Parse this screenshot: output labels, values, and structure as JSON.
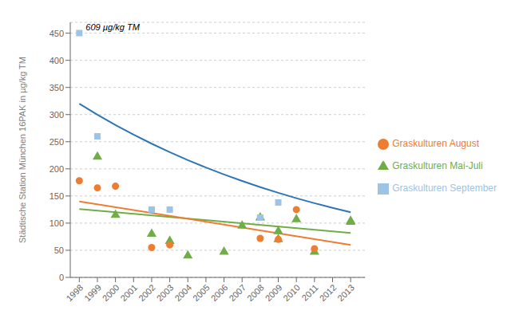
{
  "chart_data": {
    "type": "scatter",
    "ylabel": "Städtische Station München 16PAK in µg/kg TM",
    "xlim": [
      1997.5,
      2013.8
    ],
    "ylim": [
      0,
      470
    ],
    "xticks": [
      1998,
      1999,
      2000,
      2001,
      2002,
      2003,
      2004,
      2005,
      2006,
      2007,
      2008,
      2009,
      2010,
      2011,
      2012,
      2013
    ],
    "yticks": [
      0,
      50,
      100,
      150,
      200,
      250,
      300,
      350,
      400,
      450
    ],
    "grid": "y",
    "legend": "right",
    "series": [
      {
        "type": "line",
        "color": "#70AD47",
        "x": [
          1998,
          2013
        ],
        "values": [
          126,
          82
        ]
      },
      {
        "type": "line",
        "color": "#ED7D31",
        "x": [
          1998,
          2013
        ],
        "values": [
          140,
          60
        ]
      },
      {
        "type": "line",
        "color": "#2E75B6",
        "x": [
          1998,
          1999,
          2000,
          2001,
          2002,
          2003,
          2004,
          2005,
          2006,
          2007,
          2008,
          2009,
          2010,
          2011,
          2012,
          2013
        ],
        "values": [
          320,
          299.7,
          280.8,
          263.0,
          246.4,
          230.8,
          216.2,
          202.5,
          189.7,
          177.7,
          166.4,
          155.9,
          146.0,
          136.8,
          128.1,
          120
        ]
      },
      {
        "type": "scatter",
        "name": "Graskulturen Mai-Juli",
        "color": "#70AD47",
        "marker": "triangle",
        "x": [
          1999,
          2000,
          2002,
          2003,
          2004,
          2006,
          2007,
          2008,
          2009,
          2009,
          2010,
          2011,
          2013,
          2013
        ],
        "values": [
          222,
          115,
          80,
          67,
          40,
          47,
          95,
          110,
          70,
          85,
          107,
          47,
          102,
          104
        ]
      },
      {
        "type": "scatter",
        "name": "Graskulturen August",
        "color": "#ED7D31",
        "marker": "circle",
        "x": [
          1998,
          1999,
          2000,
          2002,
          2003,
          2008,
          2009,
          2010,
          2011
        ],
        "values": [
          178,
          165,
          168,
          55,
          60,
          72,
          70,
          125,
          53
        ]
      },
      {
        "type": "scatter",
        "name": "Graskulturen September",
        "color": "#9DC3E6",
        "marker": "square",
        "x": [
          1998,
          1999,
          2002,
          2003,
          2008,
          2009
        ],
        "values": [
          450,
          260,
          125,
          125,
          110,
          138
        ]
      }
    ],
    "annotations": [
      {
        "text": "609 µg/kg TM",
        "x": 1998,
        "y": 450
      }
    ]
  }
}
